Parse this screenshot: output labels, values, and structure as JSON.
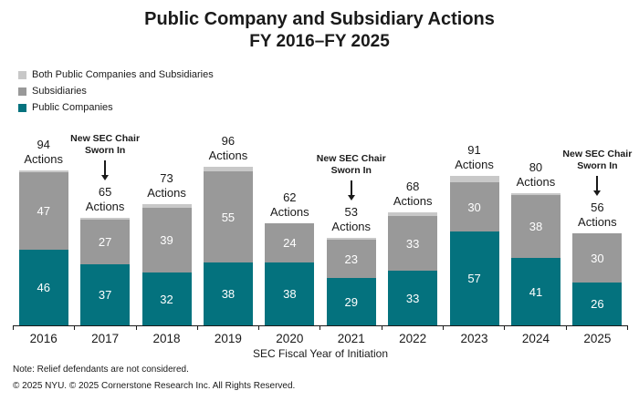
{
  "chart_data": {
    "type": "bar",
    "stacked": true,
    "title": "Public Company and Subsidiary Actions",
    "subtitle": "FY 2016–FY 2025",
    "xlabel": "SEC Fiscal Year of Initiation",
    "y_axis_shown": false,
    "grid": false,
    "legend_position": "top-left",
    "ylim": [
      0,
      96
    ],
    "categories": [
      "2016",
      "2017",
      "2018",
      "2019",
      "2020",
      "2021",
      "2022",
      "2023",
      "2024",
      "2025"
    ],
    "series": [
      {
        "name": "Public Companies",
        "color": "#04727e",
        "labeled": true,
        "values": [
          46,
          37,
          32,
          38,
          38,
          29,
          33,
          57,
          41,
          26
        ]
      },
      {
        "name": "Subsidiaries",
        "color": "#999999",
        "labeled": true,
        "values": [
          47,
          27,
          39,
          55,
          24,
          23,
          33,
          30,
          38,
          30
        ]
      },
      {
        "name": "Both Public Companies and Subsidiaries",
        "color": "#c8c8c8",
        "labeled": false,
        "values": [
          1,
          1,
          2,
          3,
          0,
          1,
          2,
          4,
          1,
          0
        ]
      }
    ],
    "totals": [
      94,
      65,
      73,
      96,
      62,
      53,
      68,
      91,
      80,
      56
    ],
    "total_label_word": "Actions",
    "annotations": [
      {
        "category": "2017",
        "lines": [
          "New SEC Chair",
          "Sworn In"
        ]
      },
      {
        "category": "2021",
        "lines": [
          "New SEC Chair",
          "Sworn In"
        ]
      },
      {
        "category": "2025",
        "lines": [
          "New SEC Chair",
          "Sworn In"
        ]
      }
    ]
  },
  "footer": {
    "note": "Note: Relief defendants are not considered.",
    "copyright": "© 2025 NYU. © 2025 Cornerstone Research Inc. All Rights Reserved."
  }
}
